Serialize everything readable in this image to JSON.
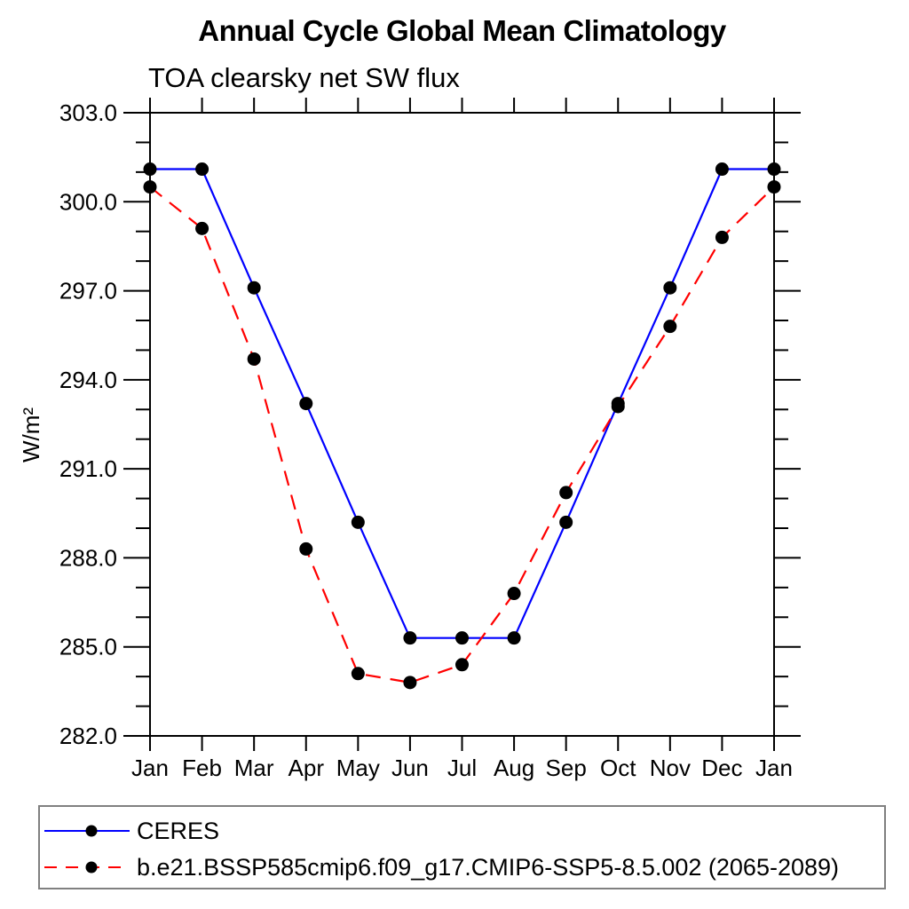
{
  "title": "Annual Cycle Global Mean Climatology",
  "subtitle": "TOA clearsky net SW flux",
  "chart_data": {
    "type": "line",
    "x_categories": [
      "Jan",
      "Feb",
      "Mar",
      "Apr",
      "May",
      "Jun",
      "Jul",
      "Aug",
      "Sep",
      "Oct",
      "Nov",
      "Dec",
      "Jan"
    ],
    "ylabel": "W/m²",
    "ylim": [
      282.0,
      303.0
    ],
    "y_major_ticks": [
      282,
      285,
      288,
      291,
      294,
      297,
      300,
      303
    ],
    "y_major_tick_labels": [
      "282.0",
      "285.0",
      "288.0",
      "291.0",
      "294.0",
      "297.0",
      "300.0",
      "303.0"
    ],
    "y_minor_step": 1.0,
    "grid": false,
    "legend_position": "bottom",
    "marker": "filled-circle",
    "marker_color": "#000000",
    "series": [
      {
        "name": "CERES",
        "color": "#0000ff",
        "style": "solid",
        "values": [
          301.1,
          301.1,
          297.1,
          293.2,
          289.2,
          285.3,
          285.3,
          285.3,
          289.2,
          293.2,
          297.1,
          301.1,
          301.1
        ]
      },
      {
        "name": "b.e21.BSSP585cmip6.f09_g17.CMIP6-SSP5-8.5.002 (2065-2089)",
        "color": "#ff0000",
        "style": "dashed",
        "values": [
          300.5,
          299.1,
          294.7,
          288.3,
          284.1,
          283.8,
          284.4,
          286.8,
          290.2,
          293.1,
          295.8,
          298.8,
          300.5
        ]
      }
    ]
  }
}
